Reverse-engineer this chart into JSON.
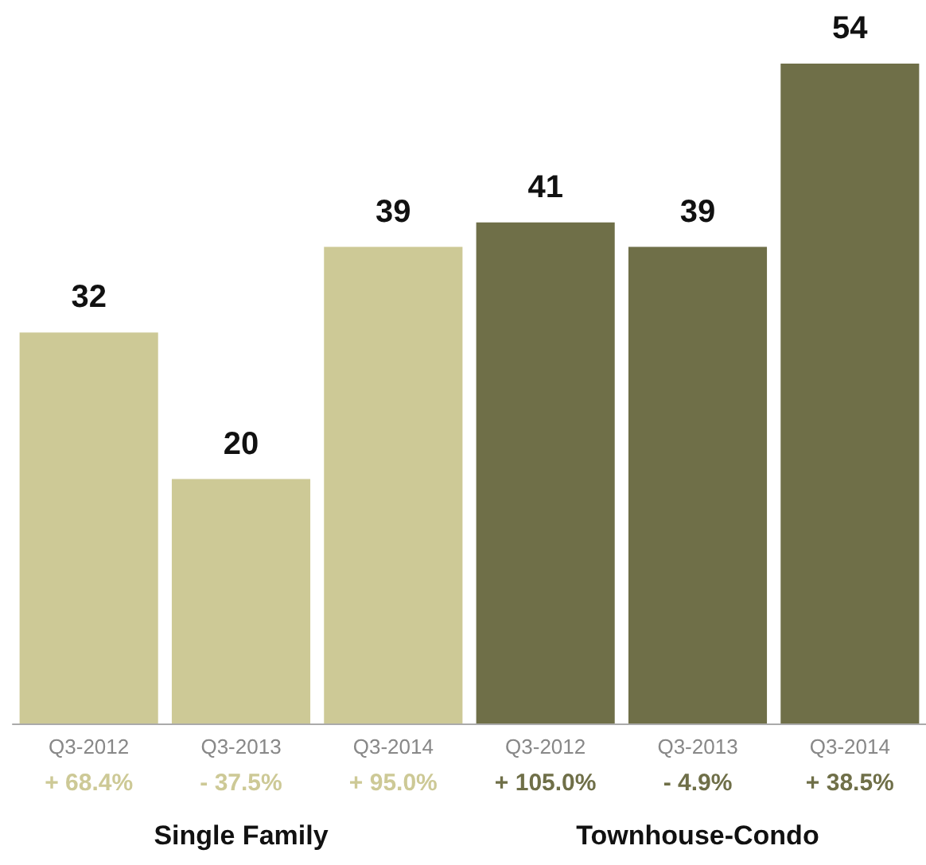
{
  "chart_data": {
    "type": "bar",
    "categories": [
      "Q3-2012",
      "Q3-2013",
      "Q3-2014",
      "Q3-2012",
      "Q3-2013",
      "Q3-2014"
    ],
    "values": [
      32,
      20,
      39,
      41,
      39,
      54
    ],
    "colors": [
      "#cdc996",
      "#cdc996",
      "#cdc996",
      "#6f6f48",
      "#6f6f48",
      "#6f6f48"
    ],
    "data_labels": true,
    "annotations": [
      "+ 68.4%",
      "- 37.5%",
      "+ 95.0%",
      "+ 105.0%",
      "- 4.9%",
      "+ 38.5%",
      "Single Family",
      "Townhouse-Condo"
    ]
  }
}
